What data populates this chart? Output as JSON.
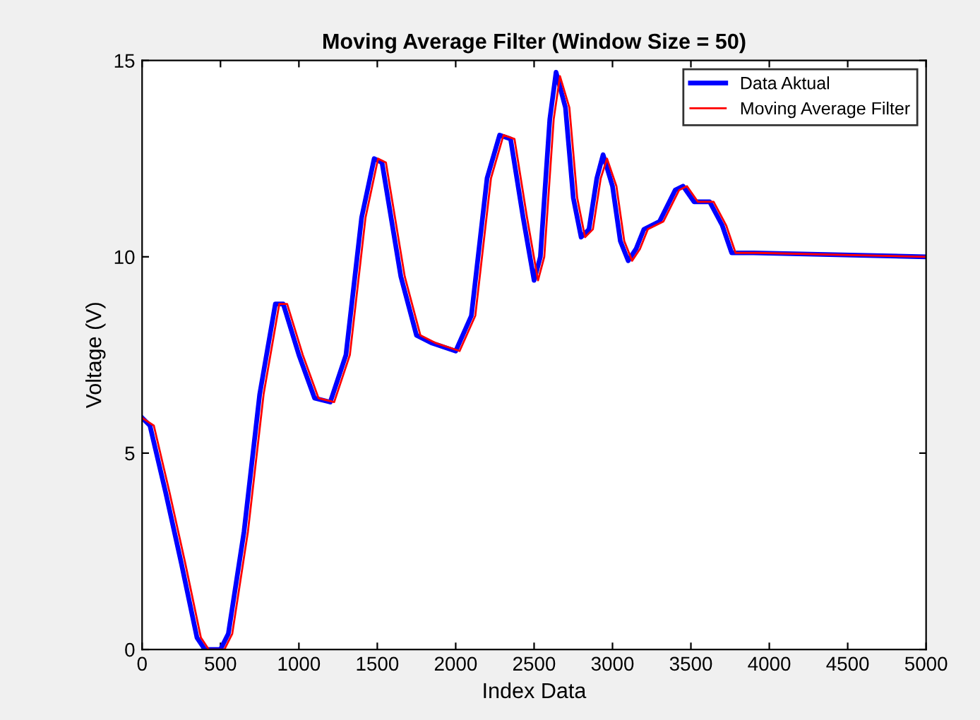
{
  "chart_data": {
    "type": "line",
    "title": "Moving Average Filter (Window Size = 50)",
    "xlabel": "Index Data",
    "ylabel": "Voltage (V)",
    "xlim": [
      0,
      5000
    ],
    "ylim": [
      0,
      15
    ],
    "xticks": [
      0,
      500,
      1000,
      1500,
      2000,
      2500,
      3000,
      3500,
      4000,
      4500,
      5000
    ],
    "yticks": [
      0,
      5,
      10,
      15
    ],
    "grid": false,
    "legend": "top right",
    "marker": "none",
    "line_style": "solid",
    "series": [
      {
        "name": "Data Aktual",
        "color": "#0000ff",
        "x": [
          0,
          50,
          150,
          250,
          350,
          400,
          500,
          550,
          650,
          750,
          850,
          900,
          1000,
          1100,
          1200,
          1300,
          1400,
          1480,
          1530,
          1650,
          1750,
          1850,
          2000,
          2100,
          2200,
          2280,
          2350,
          2430,
          2500,
          2540,
          2600,
          2640,
          2700,
          2750,
          2800,
          2850,
          2900,
          2940,
          3000,
          3050,
          3100,
          3150,
          3200,
          3300,
          3400,
          3450,
          3520,
          3620,
          3700,
          3760,
          3900,
          5000
        ],
        "values": [
          5.9,
          5.7,
          4.0,
          2.2,
          0.3,
          0.0,
          0.0,
          0.4,
          3.0,
          6.5,
          8.8,
          8.8,
          7.5,
          6.4,
          6.3,
          7.5,
          11.0,
          12.5,
          12.4,
          9.5,
          8.0,
          7.8,
          7.6,
          8.5,
          12.0,
          13.1,
          13.0,
          11.0,
          9.4,
          10.0,
          13.5,
          14.7,
          13.8,
          11.5,
          10.5,
          10.7,
          12.0,
          12.6,
          11.8,
          10.4,
          9.9,
          10.2,
          10.7,
          10.9,
          11.7,
          11.8,
          11.4,
          11.4,
          10.8,
          10.1,
          10.1,
          10.0
        ]
      },
      {
        "name": "Moving Average Filter",
        "color": "#ff0000",
        "x": [
          0,
          75,
          175,
          275,
          375,
          425,
          525,
          575,
          675,
          775,
          875,
          925,
          1025,
          1125,
          1225,
          1325,
          1425,
          1505,
          1555,
          1675,
          1775,
          1875,
          2025,
          2125,
          2225,
          2305,
          2375,
          2455,
          2525,
          2565,
          2625,
          2665,
          2725,
          2775,
          2825,
          2875,
          2925,
          2965,
          3025,
          3075,
          3125,
          3175,
          3225,
          3325,
          3425,
          3475,
          3545,
          3645,
          3725,
          3785,
          3925,
          5000
        ],
        "values": [
          5.9,
          5.7,
          4.0,
          2.2,
          0.3,
          0.0,
          0.0,
          0.4,
          3.0,
          6.5,
          8.8,
          8.8,
          7.5,
          6.4,
          6.3,
          7.5,
          11.0,
          12.5,
          12.4,
          9.5,
          8.0,
          7.8,
          7.6,
          8.5,
          12.0,
          13.1,
          13.0,
          11.0,
          9.4,
          10.0,
          13.5,
          14.6,
          13.8,
          11.5,
          10.5,
          10.7,
          12.0,
          12.5,
          11.8,
          10.4,
          9.9,
          10.2,
          10.7,
          10.9,
          11.7,
          11.8,
          11.4,
          11.4,
          10.8,
          10.1,
          10.1,
          10.0
        ]
      }
    ]
  }
}
